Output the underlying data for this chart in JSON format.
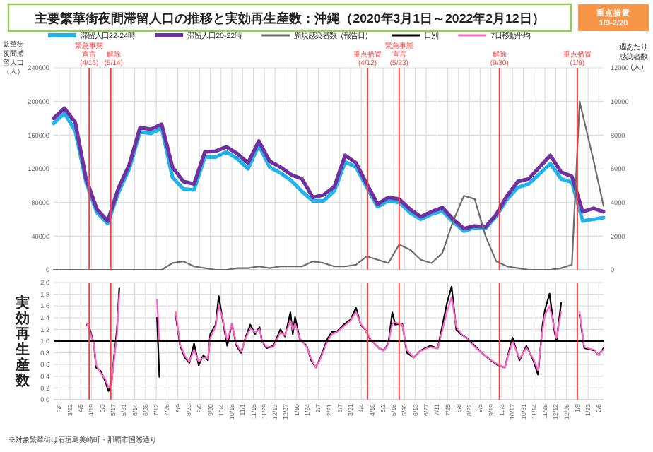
{
  "chart_data": [
    {
      "type": "line",
      "title": "主要繁華街夜間滞留人口の推移と実効再生産数：沖縄（2020年3月1日～2022年2月12日）",
      "ylabel": "繁華街夜間滞留人口（人）",
      "y2label": "週あたり感染者数（人）",
      "annotations": [
        "重点措置 1/9-2/20"
      ],
      "x": [
        "2020-03-01",
        "2020-03-15",
        "2020-03-29",
        "2020-04-12",
        "2020-04-26",
        "2020-05-10",
        "2020-05-24",
        "2020-06-07",
        "2020-06-21",
        "2020-07-05",
        "2020-07-19",
        "2020-08-02",
        "2020-08-16",
        "2020-08-30",
        "2020-09-13",
        "2020-09-27",
        "2020-10-11",
        "2020-10-25",
        "2020-11-08",
        "2020-11-22",
        "2020-12-06",
        "2020-12-20",
        "2021-01-03",
        "2021-01-17",
        "2021-01-31",
        "2021-02-14",
        "2021-02-28",
        "2021-03-14",
        "2021-03-28",
        "2021-04-11",
        "2021-04-25",
        "2021-05-09",
        "2021-05-23",
        "2021-06-06",
        "2021-06-20",
        "2021-07-04",
        "2021-07-18",
        "2021-08-01",
        "2021-08-15",
        "2021-08-29",
        "2021-09-12",
        "2021-09-26",
        "2021-10-10",
        "2021-10-24",
        "2021-11-07",
        "2021-11-21",
        "2021-12-05",
        "2021-12-19",
        "2022-01-02",
        "2022-01-16",
        "2022-01-30",
        "2022-02-12"
      ],
      "xlim": [
        "2020-03-01",
        "2022-02-12"
      ],
      "xticks": [
        {
          "value": "2020-03-08",
          "label": null
        },
        {
          "value": "2020-03-22",
          "label": null
        },
        {
          "value": "2020-04-05",
          "label": null
        },
        {
          "value": "2020-04-19",
          "label": null
        },
        {
          "value": "2020-05-03",
          "label": null
        },
        {
          "value": "2020-05-17",
          "label": null
        },
        {
          "value": "2020-05-31",
          "label": null
        },
        {
          "value": "2020-06-14",
          "label": null
        },
        {
          "value": "2020-06-28",
          "label": null
        },
        {
          "value": "2020-07-12",
          "label": null
        },
        {
          "value": "2020-07-26",
          "label": null
        },
        {
          "value": "2020-08-09",
          "label": null
        },
        {
          "value": "2020-08-23",
          "label": null
        },
        {
          "value": "2020-09-06",
          "label": null
        },
        {
          "value": "2020-09-20",
          "label": null
        },
        {
          "value": "2020-10-04",
          "label": null
        },
        {
          "value": "2020-10-18",
          "label": null
        },
        {
          "value": "2020-11-01",
          "label": null
        },
        {
          "value": "2020-11-15",
          "label": null
        },
        {
          "value": "2020-11-29",
          "label": null
        },
        {
          "value": "2020-12-13",
          "label": null
        },
        {
          "value": "2020-12-27",
          "label": null
        },
        {
          "value": "2021-01-10",
          "label": null
        },
        {
          "value": "2021-01-24",
          "label": null
        },
        {
          "value": "2021-02-07",
          "label": null
        },
        {
          "value": "2021-02-21",
          "label": null
        },
        {
          "value": "2021-03-07",
          "label": null
        },
        {
          "value": "2021-03-21",
          "label": null
        },
        {
          "value": "2021-04-04",
          "label": null
        },
        {
          "value": "2021-04-18",
          "label": null
        },
        {
          "value": "2021-05-02",
          "label": null
        },
        {
          "value": "2021-05-16",
          "label": null
        },
        {
          "value": "2021-05-30",
          "label": null
        },
        {
          "value": "2021-06-13",
          "label": null
        },
        {
          "value": "2021-06-27",
          "label": null
        },
        {
          "value": "2021-07-11",
          "label": null
        },
        {
          "value": "2021-07-25",
          "label": null
        },
        {
          "value": "2021-08-08",
          "label": null
        },
        {
          "value": "2021-08-22",
          "label": null
        },
        {
          "value": "2021-09-05",
          "label": null
        },
        {
          "value": "2021-09-19",
          "label": null
        },
        {
          "value": "2021-10-03",
          "label": null
        },
        {
          "value": "2021-10-17",
          "label": null
        },
        {
          "value": "2021-10-31",
          "label": null
        },
        {
          "value": "2021-11-14",
          "label": null
        },
        {
          "value": "2021-11-28",
          "label": null
        },
        {
          "value": "2021-12-12",
          "label": null
        },
        {
          "value": "2021-12-26",
          "label": null
        },
        {
          "value": "2022-01-09",
          "label": null
        },
        {
          "value": "2022-01-23",
          "label": null
        },
        {
          "value": "2022-02-06",
          "label": null
        }
      ],
      "ylim": [
        0,
        240000
      ],
      "yticks": [
        0,
        40000,
        80000,
        120000,
        160000,
        200000,
        240000
      ],
      "y2lim": [
        0,
        12000
      ],
      "y2ticks": [
        0,
        2000,
        4000,
        6000,
        8000,
        10000,
        12000
      ],
      "series": [
        {
          "name": "滞留人口22-24時",
          "color": "#1fb4ea",
          "values": [
            174000,
            186000,
            165000,
            104000,
            68000,
            55000,
            92000,
            120000,
            164000,
            162000,
            168000,
            110000,
            96000,
            95000,
            134000,
            134000,
            140000,
            132000,
            120000,
            148000,
            122000,
            115000,
            106000,
            93000,
            82000,
            82000,
            94000,
            128000,
            122000,
            98000,
            75000,
            82000,
            80000,
            68000,
            60000,
            66000,
            70000,
            57000,
            46000,
            50000,
            49000,
            64000,
            84000,
            98000,
            102000,
            114000,
            126000,
            108000,
            104000,
            58000,
            60000,
            62000
          ]
        },
        {
          "name": "滞留人口20-22時",
          "color": "#7030a0",
          "values": [
            180000,
            192000,
            175000,
            108000,
            72000,
            58000,
            97000,
            125000,
            169000,
            167000,
            173000,
            122000,
            105000,
            102000,
            140000,
            141000,
            146000,
            138000,
            127000,
            153000,
            129000,
            122000,
            113000,
            108000,
            86000,
            89000,
            99000,
            136000,
            127000,
            102000,
            78000,
            86000,
            84000,
            72000,
            63000,
            69000,
            74000,
            60000,
            49000,
            52000,
            51000,
            66000,
            88000,
            105000,
            108000,
            122000,
            136000,
            116000,
            111000,
            69000,
            73000,
            69000
          ]
        },
        {
          "name": "新規感染者数（報告日）",
          "color": "#6d6d6d",
          "axis": "y2",
          "x": [
            "2020-03-01",
            "2020-03-15",
            "2020-03-29",
            "2020-04-12",
            "2020-04-26",
            "2020-05-10",
            "2020-05-24",
            "2020-06-07",
            "2020-06-21",
            "2020-07-05",
            "2020-07-19",
            "2020-08-02",
            "2020-08-16",
            "2020-08-30",
            "2020-09-13",
            "2020-09-27",
            "2020-10-11",
            "2020-10-25",
            "2020-11-08",
            "2020-11-22",
            "2020-12-06",
            "2020-12-20",
            "2021-01-03",
            "2021-01-17",
            "2021-01-31",
            "2021-02-14",
            "2021-02-28",
            "2021-03-14",
            "2021-03-28",
            "2021-04-11",
            "2021-04-25",
            "2021-05-09",
            "2021-05-23",
            "2021-06-06",
            "2021-06-20",
            "2021-07-04",
            "2021-07-18",
            "2021-08-01",
            "2021-08-15",
            "2021-08-29",
            "2021-09-12",
            "2021-09-26",
            "2021-10-10",
            "2021-10-24",
            "2021-11-07",
            "2021-11-21",
            "2021-12-05",
            "2021-12-19",
            "2022-01-02",
            "2022-01-12",
            "2022-01-30",
            "2022-02-12"
          ],
          "values": [
            0,
            0,
            0,
            0,
            0,
            0,
            0,
            0,
            0,
            0,
            0,
            400,
            500,
            200,
            100,
            0,
            0,
            100,
            100,
            200,
            100,
            200,
            200,
            200,
            500,
            400,
            200,
            200,
            300,
            800,
            600,
            400,
            1500,
            1200,
            600,
            400,
            1000,
            2900,
            4400,
            4200,
            2000,
            500,
            200,
            100,
            0,
            0,
            0,
            100,
            300,
            10000,
            6500,
            3800
          ]
        }
      ],
      "ref_lines": [
        {
          "axis": "x",
          "value": "2020-04-16",
          "label": "緊急事態宣言(4/16)",
          "color": "#ff4040"
        },
        {
          "axis": "x",
          "value": "2020-05-14",
          "label": "解除(5/14)",
          "color": "#ff4040"
        },
        {
          "axis": "x",
          "value": "2021-04-12",
          "label": "重点措置(4/12)",
          "color": "#ff4040"
        },
        {
          "axis": "x",
          "value": "2021-05-23",
          "label": "緊急事態宣言(5/23)",
          "color": "#ff4040"
        },
        {
          "axis": "x",
          "value": "2021-09-30",
          "label": "解除(9/30)",
          "color": "#ff4040"
        },
        {
          "axis": "x",
          "value": "2022-01-09",
          "label": "重点措置(1/9)",
          "color": "#ff4040"
        }
      ],
      "grid": true,
      "legend": "top",
      "tick_labels": "y"
    },
    {
      "type": "line",
      "ylabel": "実効再生産数",
      "annotations": [
        "※対象繁華街は石垣島美崎町・那覇市国際通り"
      ],
      "x": [
        "2020-04-13",
        "2020-04-16",
        "2020-04-22",
        "2020-04-25",
        "2020-05-01",
        "2020-05-07",
        "2020-05-11",
        "2020-05-15",
        "2020-05-22",
        "2020-05-25",
        "2020-07-13",
        "2020-07-16",
        "2020-08-06",
        "2020-08-12",
        "2020-08-18",
        "2020-08-24",
        "2020-08-30",
        "2020-09-05",
        "2020-09-11",
        "2020-09-17",
        "2020-09-20",
        "2020-09-27",
        "2020-10-01",
        "2020-10-06",
        "2020-10-12",
        "2020-10-18",
        "2020-10-24",
        "2020-10-30",
        "2020-11-05",
        "2020-11-11",
        "2020-11-17",
        "2020-11-23",
        "2020-11-26",
        "2020-12-02",
        "2020-12-11",
        "2020-12-20",
        "2020-12-26",
        "2021-01-02",
        "2021-01-05",
        "2021-01-08",
        "2021-01-14",
        "2021-01-23",
        "2021-01-29",
        "2021-02-04",
        "2021-02-10",
        "2021-02-19",
        "2021-02-25",
        "2021-03-03",
        "2021-03-12",
        "2021-03-21",
        "2021-03-28",
        "2021-04-03",
        "2021-04-09",
        "2021-04-15",
        "2021-04-27",
        "2021-05-03",
        "2021-05-09",
        "2021-05-14",
        "2021-05-18",
        "2021-05-27",
        "2021-06-02",
        "2021-06-11",
        "2021-06-20",
        "2021-07-02",
        "2021-07-12",
        "2021-07-24",
        "2021-07-30",
        "2021-08-05",
        "2021-08-11",
        "2021-08-20",
        "2021-08-29",
        "2021-09-07",
        "2021-09-19",
        "2021-09-28",
        "2021-10-07",
        "2021-10-17",
        "2021-10-26",
        "2021-11-04",
        "2021-11-13",
        "2021-11-19",
        "2021-11-25",
        "2021-11-28",
        "2021-12-04",
        "2021-12-10",
        "2021-12-13",
        "2021-12-19",
        "2022-01-12",
        "2022-01-18",
        "2022-01-31",
        "2022-02-06",
        "2022-02-12"
      ],
      "xlim": [
        "2020-03-01",
        "2022-02-12"
      ],
      "xticks": [
        {
          "value": "2020-03-08",
          "label": "3/8"
        },
        {
          "value": "2020-03-22",
          "label": "3/22"
        },
        {
          "value": "2020-04-05",
          "label": "4/5"
        },
        {
          "value": "2020-04-19",
          "label": "4/19"
        },
        {
          "value": "2020-05-03",
          "label": "5/3"
        },
        {
          "value": "2020-05-17",
          "label": "5/17"
        },
        {
          "value": "2020-05-31",
          "label": "5/31"
        },
        {
          "value": "2020-06-14",
          "label": "6/14"
        },
        {
          "value": "2020-06-28",
          "label": "6/28"
        },
        {
          "value": "2020-07-12",
          "label": "7/12"
        },
        {
          "value": "2020-07-26",
          "label": "7/26"
        },
        {
          "value": "2020-08-09",
          "label": "8/9"
        },
        {
          "value": "2020-08-23",
          "label": "8/23"
        },
        {
          "value": "2020-09-06",
          "label": "9/6"
        },
        {
          "value": "2020-09-20",
          "label": "9/20"
        },
        {
          "value": "2020-10-04",
          "label": "10/4"
        },
        {
          "value": "2020-10-18",
          "label": "10/18"
        },
        {
          "value": "2020-11-01",
          "label": "11/1"
        },
        {
          "value": "2020-11-15",
          "label": "11/15"
        },
        {
          "value": "2020-11-29",
          "label": "11/29"
        },
        {
          "value": "2020-12-13",
          "label": "12/13"
        },
        {
          "value": "2020-12-27",
          "label": "12/27"
        },
        {
          "value": "2021-01-10",
          "label": "1/10"
        },
        {
          "value": "2021-01-24",
          "label": "1/24"
        },
        {
          "value": "2021-02-07",
          "label": "2/7"
        },
        {
          "value": "2021-02-21",
          "label": "2/21"
        },
        {
          "value": "2021-03-07",
          "label": "3/7"
        },
        {
          "value": "2021-03-21",
          "label": "3/21"
        },
        {
          "value": "2021-04-04",
          "label": "4/4"
        },
        {
          "value": "2021-04-18",
          "label": "4/18"
        },
        {
          "value": "2021-05-02",
          "label": "5/2"
        },
        {
          "value": "2021-05-16",
          "label": "5/16"
        },
        {
          "value": "2021-05-30",
          "label": "5/30"
        },
        {
          "value": "2021-06-13",
          "label": "6/13"
        },
        {
          "value": "2021-06-27",
          "label": "6/27"
        },
        {
          "value": "2021-07-11",
          "label": "7/11"
        },
        {
          "value": "2021-07-25",
          "label": "7/25"
        },
        {
          "value": "2021-08-08",
          "label": "8/8"
        },
        {
          "value": "2021-08-22",
          "label": "8/22"
        },
        {
          "value": "2021-09-05",
          "label": "9/5"
        },
        {
          "value": "2021-09-19",
          "label": "9/19"
        },
        {
          "value": "2021-10-03",
          "label": "10/3"
        },
        {
          "value": "2021-10-17",
          "label": "10/17"
        },
        {
          "value": "2021-10-31",
          "label": "10/31"
        },
        {
          "value": "2021-11-14",
          "label": "11/14"
        },
        {
          "value": "2021-11-28",
          "label": "11/28"
        },
        {
          "value": "2021-12-12",
          "label": "12/12"
        },
        {
          "value": "2021-12-26",
          "label": "12/26"
        },
        {
          "value": "2022-01-09",
          "label": "1/9"
        },
        {
          "value": "2022-01-23",
          "label": "1/23"
        },
        {
          "value": "2022-02-06",
          "label": "2/6"
        }
      ],
      "ylim": [
        0,
        2
      ],
      "yticks": [
        {
          "value": 0,
          "label": "0.0"
        },
        {
          "value": 0.2,
          "label": "0.2"
        },
        {
          "value": 0.4,
          "label": "0.4"
        },
        {
          "value": 0.6,
          "label": "0.6"
        },
        {
          "value": 0.8,
          "label": "0.8"
        },
        {
          "value": 1,
          "label": "1.0"
        },
        {
          "value": 1.2,
          "label": "1.2"
        },
        {
          "value": 1.4,
          "label": "1.4"
        },
        {
          "value": 1.6,
          "label": "1.6"
        },
        {
          "value": 1.8,
          "label": "1.8"
        },
        {
          "value": 2,
          "label": "2.0"
        }
      ],
      "series": [
        {
          "name": "日別",
          "color": "#000000",
          "values": [
            1.28,
            1.24,
            0.96,
            0.55,
            0.49,
            0.31,
            0.15,
            0.31,
            1.2,
            1.9,
            1.4,
            0.39,
            1.45,
            0.92,
            0.72,
            0.63,
            0.96,
            0.59,
            0.76,
            0.67,
            1.12,
            1.28,
            1.77,
            1.37,
            0.92,
            1.3,
            0.92,
            0.8,
            1.07,
            1.28,
            1.12,
            1.24,
            1.0,
            0.88,
            0.92,
            1.2,
            1.08,
            1.49,
            1.12,
            1.41,
            1.04,
            0.92,
            0.67,
            0.55,
            0.72,
            1.04,
            1.16,
            1.16,
            1.28,
            1.37,
            1.57,
            1.28,
            1.2,
            1.04,
            0.88,
            0.84,
            0.96,
            1.49,
            1.28,
            1.3,
            0.8,
            0.72,
            0.84,
            0.92,
            0.88,
            1.65,
            1.93,
            1.2,
            1.12,
            1.04,
            0.92,
            0.8,
            0.67,
            0.59,
            0.55,
            1.06,
            0.67,
            0.92,
            0.67,
            0.43,
            1.28,
            1.53,
            1.81,
            1.2,
            1.0,
            1.65,
            1.45,
            0.88,
            0.84,
            0.76,
            0.88
          ]
        },
        {
          "name": "7日移動平均",
          "color": "#ff66cc",
          "values": [
            1.3,
            1.2,
            0.95,
            0.6,
            0.45,
            0.35,
            0.2,
            0.3,
            1.1,
            1.8,
            1.7,
            1.0,
            1.5,
            0.95,
            0.75,
            0.65,
            0.85,
            0.65,
            0.72,
            0.7,
            1.05,
            1.25,
            1.6,
            1.4,
            1.0,
            1.3,
            0.95,
            0.82,
            1.05,
            1.22,
            1.15,
            1.2,
            1.0,
            0.9,
            0.9,
            1.15,
            1.1,
            1.35,
            1.2,
            1.3,
            1.05,
            0.9,
            0.7,
            0.55,
            0.7,
            1.0,
            1.12,
            1.15,
            1.25,
            1.35,
            1.5,
            1.3,
            1.2,
            1.05,
            0.88,
            0.83,
            0.95,
            1.3,
            1.32,
            1.28,
            0.85,
            0.72,
            0.83,
            0.9,
            0.87,
            1.5,
            1.75,
            1.25,
            1.13,
            1.03,
            0.9,
            0.8,
            0.68,
            0.6,
            0.55,
            1.0,
            0.7,
            0.88,
            0.7,
            0.5,
            1.2,
            1.45,
            1.6,
            1.25,
            1.05,
            1.5,
            1.5,
            0.9,
            0.85,
            0.76,
            0.86
          ]
        }
      ],
      "ref_lines": [
        {
          "axis": "y",
          "value": 1,
          "color": "#000000"
        },
        {
          "axis": "x",
          "value": "2020-04-16",
          "color": "#ff4040"
        },
        {
          "axis": "x",
          "value": "2020-05-14",
          "color": "#ff4040"
        },
        {
          "axis": "x",
          "value": "2021-04-12",
          "color": "#ff4040"
        },
        {
          "axis": "x",
          "value": "2021-05-23",
          "color": "#ff4040"
        },
        {
          "axis": "x",
          "value": "2021-09-30",
          "color": "#ff4040"
        },
        {
          "axis": "x",
          "value": "2022-01-09",
          "color": "#ff4040"
        }
      ],
      "grid": true,
      "legend": "top"
    }
  ]
}
